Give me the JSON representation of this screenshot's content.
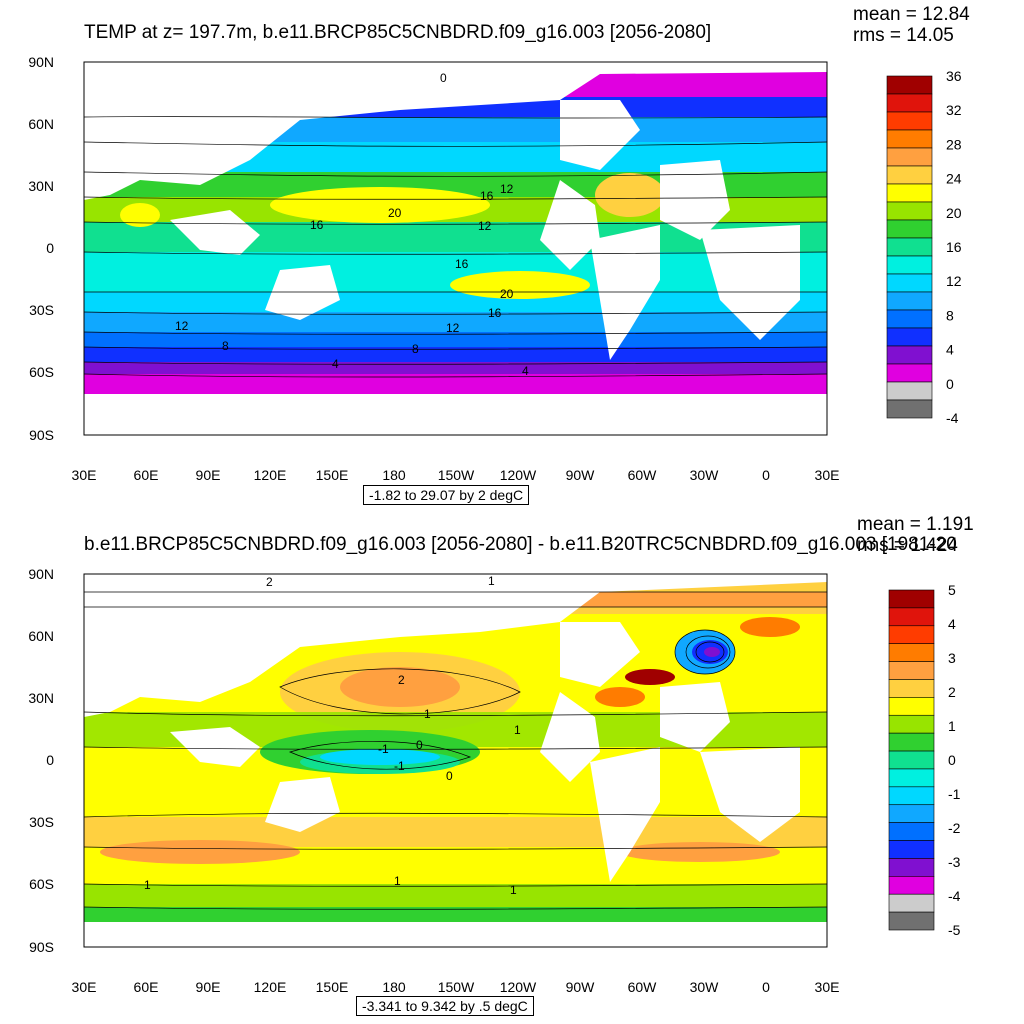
{
  "panels": [
    {
      "title": "TEMP at z= 197.7m, b.e11.BRCP85C5CNBDRD.f09_g16.003 [2056-2080]",
      "mean": "mean = 12.84",
      "rms": "rms = 14.05",
      "range_text": "-1.82 to 29.07 by 2 degC",
      "colorbar": {
        "labels": [
          "36",
          "32",
          "28",
          "24",
          "20",
          "16",
          "12",
          "8",
          "4",
          "0",
          "-4"
        ],
        "colors": [
          "#a00000",
          "#e0140c",
          "#ff3c00",
          "#ff7c00",
          "#ffa040",
          "#ffd040",
          "#ffff00",
          "#98e400",
          "#30d030",
          "#10e090",
          "#00f0e0",
          "#00d8ff",
          "#10a8ff",
          "#0070ff",
          "#1030ff",
          "#8010d0",
          "#e000e0",
          "#cccccc",
          "#707070"
        ]
      },
      "contour_labels": [
        "0",
        "12",
        "16",
        "20",
        "16",
        "12",
        "16",
        "20",
        "16",
        "12",
        "12",
        "8",
        "8",
        "4",
        "4"
      ]
    },
    {
      "title": "b.e11.BRCP85C5CNBDRD.f09_g16.003 [2056-2080] - b.e11.B20TRC5CNBDRD.f09_g16.003 [1981-20",
      "mean": "mean = 1.191",
      "rms": "rms = 1.424",
      "range_text": "-3.341 to 9.342 by .5 degC",
      "colorbar": {
        "labels": [
          "5",
          "4",
          "3",
          "2",
          "1",
          "0",
          "-1",
          "-2",
          "-3",
          "-4",
          "-5"
        ],
        "colors": [
          "#a00000",
          "#e0140c",
          "#ff3c00",
          "#ff7c00",
          "#ffa040",
          "#ffd040",
          "#ffff00",
          "#98e400",
          "#30d030",
          "#10e090",
          "#00f0e0",
          "#00d8ff",
          "#10a8ff",
          "#0070ff",
          "#1030ff",
          "#8010d0",
          "#e000e0",
          "#cccccc",
          "#707070"
        ]
      },
      "contour_labels": [
        "2",
        "1",
        "2",
        "1",
        "1",
        "-1",
        "0",
        "-1",
        "0",
        "1",
        "1",
        "1"
      ]
    }
  ],
  "axes": {
    "lat_labels": [
      "90N",
      "60N",
      "30N",
      "0",
      "30S",
      "60S",
      "90S"
    ],
    "lon_labels": [
      "30E",
      "60E",
      "90E",
      "120E",
      "150E",
      "180",
      "150W",
      "120W",
      "90W",
      "60W",
      "30W",
      "0",
      "30E"
    ]
  }
}
